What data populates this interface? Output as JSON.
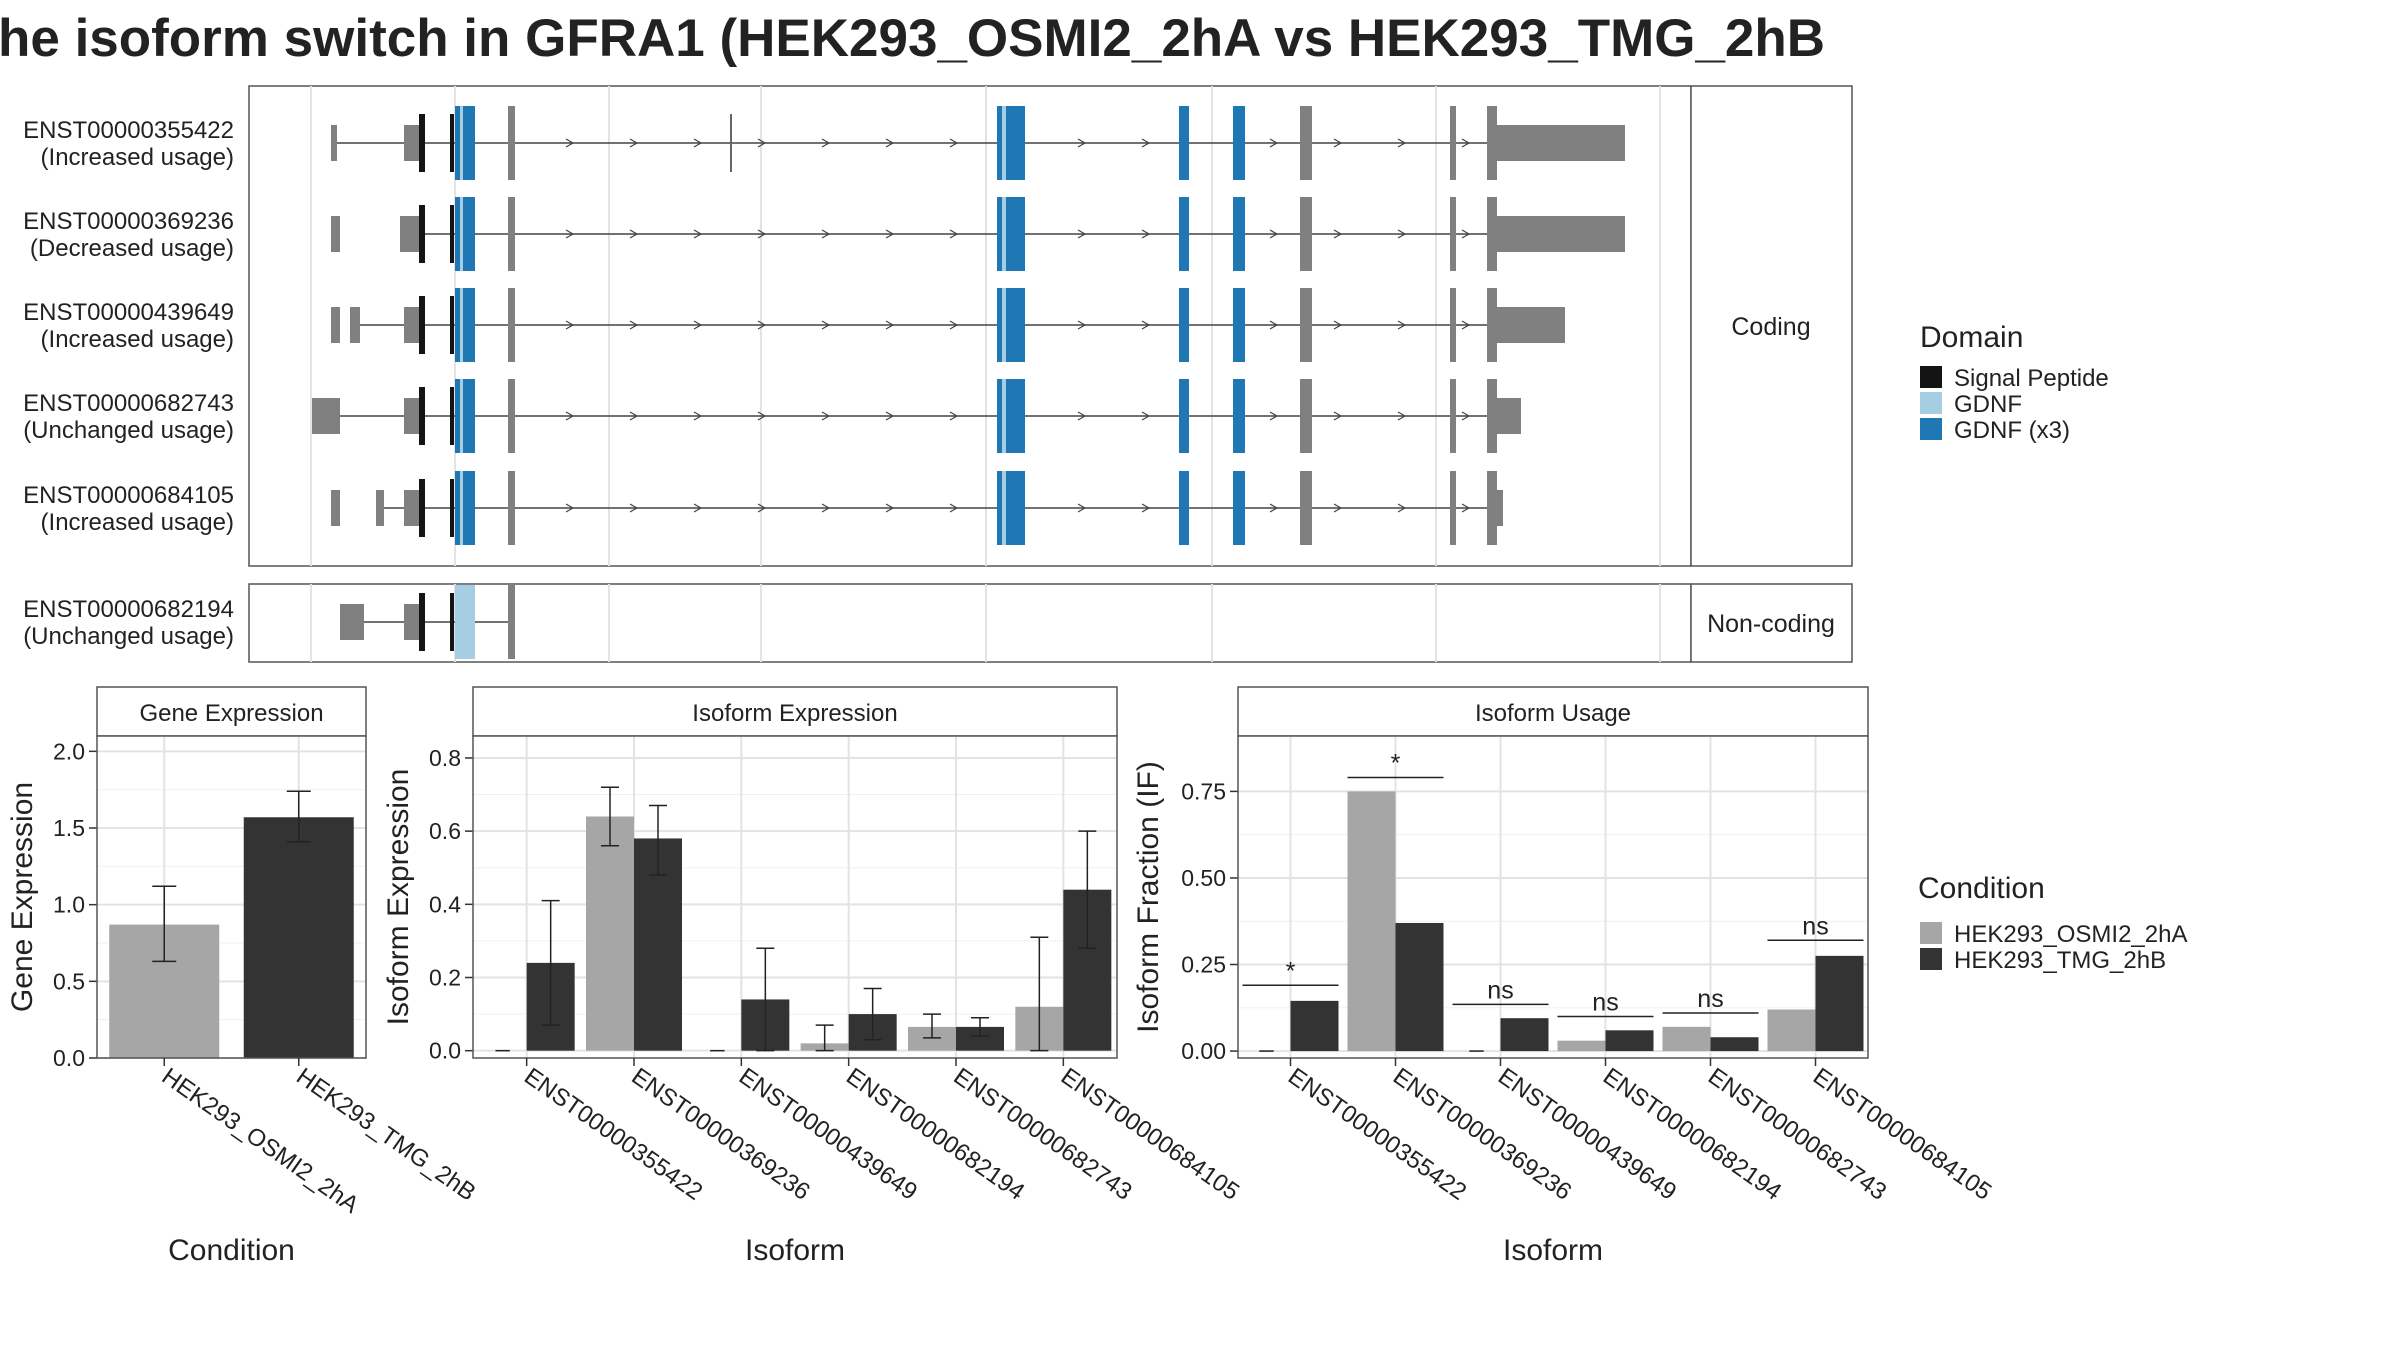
{
  "title": "he isoform switch in GFRA1 (HEK293_OSMI2_2hA vs HEK293_TMG_2hB",
  "colors": {
    "exon": "#808080",
    "signal_peptide": "#141414",
    "gdnf": "#a6cee3",
    "gdnf_x3": "#1f78b4",
    "cond_a": "#a6a6a6",
    "cond_b": "#333333"
  },
  "chart_data": [
    {
      "type": "gene_structure",
      "facets": [
        "Coding",
        "Non-coding"
      ],
      "isoforms": [
        {
          "id": "ENST00000355422",
          "usage": "(Increased usage)",
          "facet": "Coding"
        },
        {
          "id": "ENST00000369236",
          "usage": "(Decreased usage)",
          "facet": "Coding"
        },
        {
          "id": "ENST00000439649",
          "usage": "(Increased usage)",
          "facet": "Coding"
        },
        {
          "id": "ENST00000682743",
          "usage": "(Unchanged usage)",
          "facet": "Coding"
        },
        {
          "id": "ENST00000684105",
          "usage": "(Increased usage)",
          "facet": "Coding"
        },
        {
          "id": "ENST00000682194",
          "usage": "(Unchanged usage)",
          "facet": "Non-coding"
        }
      ],
      "legend": {
        "title": "Domain",
        "items": [
          {
            "label": "Signal Peptide",
            "color": "#141414"
          },
          {
            "label": "GDNF",
            "color": "#a6cee3"
          },
          {
            "label": "GDNF (x3)",
            "color": "#1f78b4"
          }
        ]
      }
    },
    {
      "type": "bar",
      "title": "Gene Expression",
      "xlabel": "Condition",
      "ylabel": "Gene Expression",
      "categories": [
        "HEK293_OSMI2_2hA",
        "HEK293_TMG_2hB"
      ],
      "values": [
        0.87,
        1.57
      ],
      "errors": [
        [
          0.63,
          1.12
        ],
        [
          1.41,
          1.74
        ]
      ],
      "ylim": [
        0,
        2.1
      ],
      "yticks": [
        "0.0",
        "0.5",
        "1.0",
        "1.5",
        "2.0"
      ],
      "ytick_values": [
        0,
        0.5,
        1.0,
        1.5,
        2.0
      ]
    },
    {
      "type": "bar",
      "title": "Isoform Expression",
      "xlabel": "Isoform",
      "ylabel": "Isoform Expression",
      "categories": [
        "ENST00000355422",
        "ENST00000369236",
        "ENST00000439649",
        "ENST00000682194",
        "ENST00000682743",
        "ENST00000684105"
      ],
      "series": [
        {
          "condition": "HEK293_OSMI2_2hA",
          "values": [
            0.0,
            0.64,
            0.0,
            0.02,
            0.065,
            0.12
          ],
          "errors": [
            [
              0.0,
              0.0
            ],
            [
              0.56,
              0.72
            ],
            [
              0.0,
              0.0
            ],
            [
              0.0,
              0.07
            ],
            [
              0.035,
              0.1
            ],
            [
              0.0,
              0.31
            ]
          ]
        },
        {
          "condition": "HEK293_TMG_2hB",
          "values": [
            0.24,
            0.58,
            0.14,
            0.1,
            0.065,
            0.44
          ],
          "errors": [
            [
              0.07,
              0.41
            ],
            [
              0.48,
              0.67
            ],
            [
              0.0,
              0.28
            ],
            [
              0.03,
              0.17
            ],
            [
              0.04,
              0.09
            ],
            [
              0.28,
              0.6
            ]
          ]
        }
      ],
      "ylim": [
        -0.02,
        0.86
      ],
      "yticks": [
        "0.0",
        "0.2",
        "0.4",
        "0.6",
        "0.8"
      ],
      "ytick_values": [
        0,
        0.2,
        0.4,
        0.6,
        0.8
      ]
    },
    {
      "type": "bar",
      "title": "Isoform Usage",
      "xlabel": "Isoform",
      "ylabel": "Isoform Fraction (IF)",
      "categories": [
        "ENST00000355422",
        "ENST00000369236",
        "ENST00000439649",
        "ENST00000682194",
        "ENST00000682743",
        "ENST00000684105"
      ],
      "series": [
        {
          "condition": "HEK293_OSMI2_2hA",
          "values": [
            0.0,
            0.75,
            0.0,
            0.03,
            0.07,
            0.12
          ]
        },
        {
          "condition": "HEK293_TMG_2hB",
          "values": [
            0.145,
            0.37,
            0.095,
            0.06,
            0.04,
            0.275
          ]
        }
      ],
      "significance": [
        "*",
        "*",
        "ns",
        "ns",
        "ns",
        "ns"
      ],
      "significance_y": [
        0.19,
        0.79,
        0.135,
        0.1,
        0.11,
        0.32
      ],
      "ylim": [
        -0.02,
        0.91
      ],
      "yticks": [
        "0.00",
        "0.25",
        "0.50",
        "0.75"
      ],
      "ytick_values": [
        0,
        0.25,
        0.5,
        0.75
      ]
    }
  ],
  "condition_legend": {
    "title": "Condition",
    "items": [
      {
        "label": "HEK293_OSMI2_2hA",
        "color": "#a6a6a6"
      },
      {
        "label": "HEK293_TMG_2hB",
        "color": "#333333"
      }
    ]
  }
}
